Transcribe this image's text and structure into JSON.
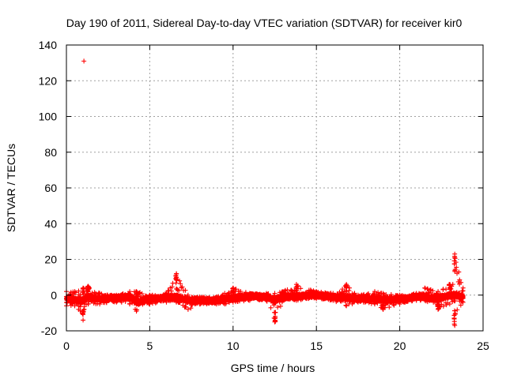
{
  "chart_data": {
    "type": "scatter",
    "title": "Day 190 of 2011, Sidereal Day-to-day VTEC variation (SDTVAR) for receiver kir0",
    "xlabel": "GPS time / hours",
    "ylabel": "SDTVAR / TECUs",
    "xlim": [
      0,
      25
    ],
    "ylim": [
      -20,
      140
    ],
    "x_ticks": [
      "0",
      "5",
      "10",
      "15",
      "20",
      "25"
    ],
    "y_ticks": [
      "-20",
      "0",
      "20",
      "40",
      "60",
      "80",
      "100",
      "120",
      "140"
    ],
    "grid": true,
    "marker": "+",
    "series_color": "#ff0000",
    "outliers": [
      {
        "x": 1.05,
        "y": 131
      }
    ],
    "band_profile": [
      {
        "x": 0.0,
        "center": -2.0,
        "low": -6,
        "high": 2
      },
      {
        "x": 0.5,
        "center": -2.5,
        "low": -6,
        "high": 2
      },
      {
        "x": 1.0,
        "center": -3.0,
        "low": -14,
        "high": 4
      },
      {
        "x": 1.3,
        "center": -1.0,
        "low": -5,
        "high": 5
      },
      {
        "x": 2.0,
        "center": -2.0,
        "low": -5,
        "high": 1
      },
      {
        "x": 3.0,
        "center": -1.5,
        "low": -4,
        "high": 0
      },
      {
        "x": 3.8,
        "center": -1.0,
        "low": -5,
        "high": 2
      },
      {
        "x": 4.2,
        "center": -4.0,
        "low": -9,
        "high": 2
      },
      {
        "x": 5.0,
        "center": -2.0,
        "low": -5,
        "high": 0
      },
      {
        "x": 6.0,
        "center": -1.5,
        "low": -4,
        "high": 1
      },
      {
        "x": 6.6,
        "center": -1.0,
        "low": -4,
        "high": 12
      },
      {
        "x": 7.3,
        "center": -3.0,
        "low": -8,
        "high": 0
      },
      {
        "x": 8.0,
        "center": -3.0,
        "low": -5,
        "high": -1
      },
      {
        "x": 9.0,
        "center": -3.0,
        "low": -5,
        "high": -1
      },
      {
        "x": 9.5,
        "center": -2.0,
        "low": -5,
        "high": 1
      },
      {
        "x": 10.0,
        "center": -1.5,
        "low": -4,
        "high": 4
      },
      {
        "x": 11.0,
        "center": -0.5,
        "low": -3,
        "high": 1
      },
      {
        "x": 12.0,
        "center": -1.0,
        "low": -3,
        "high": 1
      },
      {
        "x": 12.5,
        "center": -3.0,
        "low": -15,
        "high": 1
      },
      {
        "x": 13.0,
        "center": -1.0,
        "low": -3,
        "high": 2
      },
      {
        "x": 13.8,
        "center": -0.5,
        "low": -3,
        "high": 6
      },
      {
        "x": 15.0,
        "center": 0.0,
        "low": -2,
        "high": 2
      },
      {
        "x": 16.0,
        "center": -1.0,
        "low": -3,
        "high": 1
      },
      {
        "x": 16.8,
        "center": -1.5,
        "low": -6,
        "high": 6
      },
      {
        "x": 17.5,
        "center": -2.0,
        "low": -4,
        "high": 0
      },
      {
        "x": 18.5,
        "center": -2.0,
        "low": -5,
        "high": 2
      },
      {
        "x": 19.0,
        "center": -2.5,
        "low": -8,
        "high": 1
      },
      {
        "x": 20.0,
        "center": -2.5,
        "low": -5,
        "high": 0
      },
      {
        "x": 21.0,
        "center": -1.0,
        "low": -3,
        "high": 1
      },
      {
        "x": 21.5,
        "center": -1.0,
        "low": -3,
        "high": 4
      },
      {
        "x": 22.3,
        "center": -2.0,
        "low": -8,
        "high": 2
      },
      {
        "x": 23.0,
        "center": 0.0,
        "low": -5,
        "high": 6
      },
      {
        "x": 23.3,
        "center": 0.0,
        "low": -17,
        "high": 23
      },
      {
        "x": 23.8,
        "center": -1.0,
        "low": -4,
        "high": 4
      }
    ]
  }
}
